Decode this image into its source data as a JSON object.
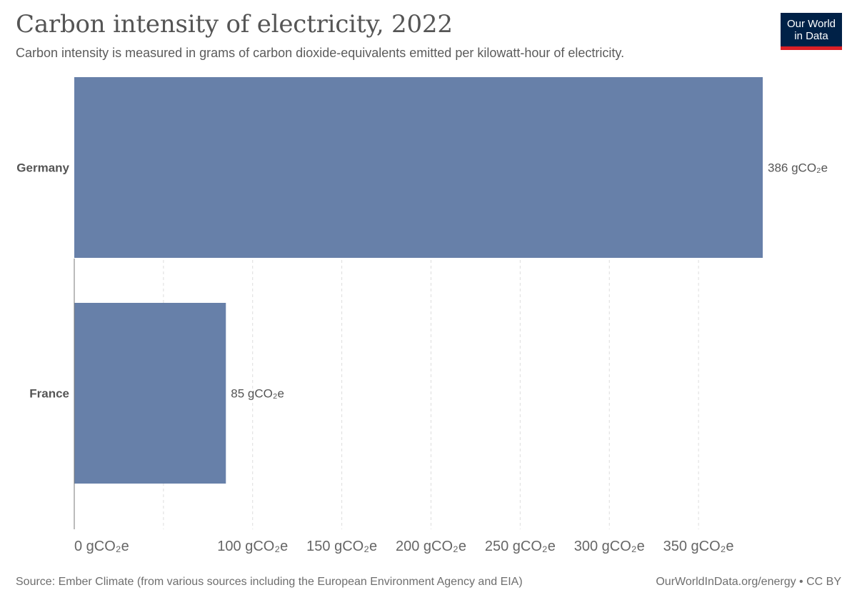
{
  "header": {
    "title": "Carbon intensity of electricity, 2022",
    "subtitle": "Carbon intensity is measured in grams of carbon dioxide-equivalents emitted per kilowatt-hour of electricity."
  },
  "logo": {
    "line1": "Our World",
    "line2": "in Data"
  },
  "footer": {
    "source": "Source: Ember Climate (from various sources including the European Environment Agency and EIA)",
    "credit": "OurWorldInData.org/energy • CC BY"
  },
  "colors": {
    "bar": "#6780a9",
    "axis": "#777777",
    "grid": "#dddddd",
    "label": "#555555"
  },
  "chart_data": {
    "type": "bar",
    "orientation": "horizontal",
    "title": "Carbon intensity of electricity, 2022",
    "categories": [
      "Germany",
      "France"
    ],
    "values": [
      386,
      85
    ],
    "value_labels": [
      "386 gCO₂e",
      "85 gCO₂e"
    ],
    "unit": "gCO₂e",
    "xlim": [
      0,
      386
    ],
    "ticks": [
      0,
      100,
      150,
      200,
      250,
      300,
      350
    ],
    "tick_labels": [
      "0 gCO₂e",
      "100 gCO₂e",
      "150 gCO₂e",
      "200 gCO₂e",
      "250 gCO₂e",
      "300 gCO₂e",
      "350 gCO₂e"
    ],
    "gridlines": [
      50,
      100,
      150,
      200,
      250,
      300,
      350
    ],
    "grid": true,
    "legend": "none"
  }
}
